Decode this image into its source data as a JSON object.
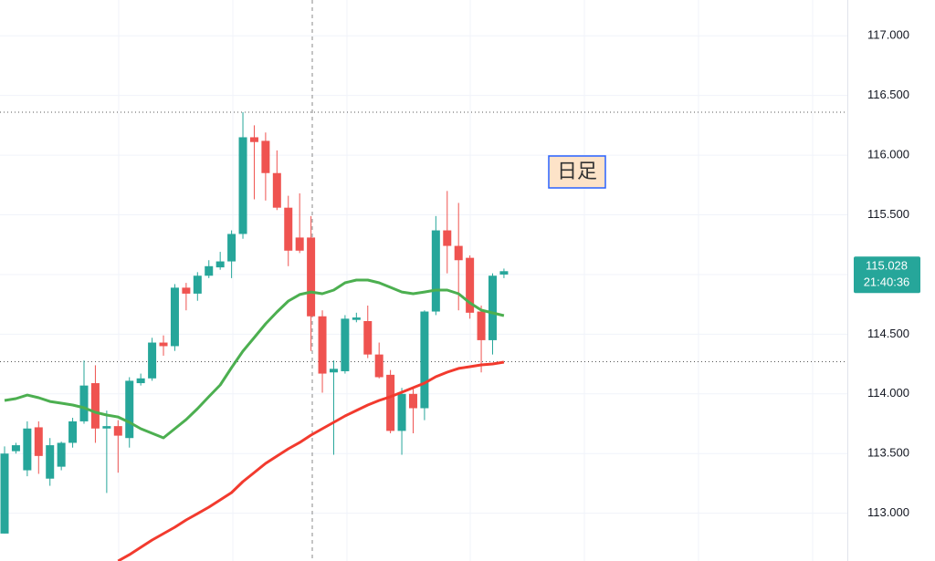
{
  "chart_data": {
    "type": "candlestick",
    "open": [
      112.83,
      113.52,
      113.36,
      113.72,
      113.29,
      113.39,
      113.59,
      113.77,
      114.09,
      113.71,
      113.73,
      113.63,
      114.09,
      114.13,
      114.43,
      114.4,
      114.89,
      114.84,
      114.99,
      115.06,
      115.11,
      115.34,
      116.15,
      116.12,
      115.85,
      115.56,
      115.31,
      115.31,
      114.65,
      114.18,
      114.19,
      114.62,
      114.61,
      114.33,
      114.16,
      113.69,
      114.0,
      113.88,
      114.69,
      115.37,
      115.24,
      115.14,
      114.69,
      114.45,
      115.0
    ],
    "high": [
      113.56,
      113.59,
      113.77,
      113.77,
      113.63,
      113.6,
      113.8,
      114.28,
      114.24,
      113.86,
      113.78,
      114.14,
      114.17,
      114.47,
      114.49,
      114.92,
      114.93,
      115.02,
      115.12,
      115.19,
      115.37,
      116.36,
      116.25,
      116.19,
      116.04,
      115.66,
      115.68,
      115.49,
      114.7,
      114.28,
      114.66,
      114.68,
      114.74,
      114.43,
      114.2,
      114.05,
      114.05,
      114.7,
      115.49,
      115.7,
      115.6,
      115.16,
      114.74,
      115.01,
      115.05
    ],
    "low": [
      112.83,
      113.5,
      113.31,
      113.33,
      113.23,
      113.36,
      113.55,
      113.75,
      113.59,
      113.17,
      113.34,
      113.55,
      114.07,
      114.11,
      114.32,
      114.36,
      114.7,
      114.78,
      114.97,
      115.04,
      114.97,
      115.3,
      115.63,
      115.62,
      115.54,
      115.07,
      115.18,
      114.36,
      114.01,
      113.49,
      114.17,
      114.6,
      114.3,
      114.13,
      113.67,
      113.49,
      113.67,
      113.78,
      114.66,
      115.01,
      114.7,
      114.63,
      114.18,
      114.33,
      114.97
    ],
    "close": [
      113.5,
      113.57,
      113.71,
      113.48,
      113.57,
      113.59,
      113.77,
      114.07,
      113.71,
      113.73,
      113.65,
      114.11,
      114.13,
      114.43,
      114.4,
      114.89,
      114.84,
      114.99,
      115.07,
      115.11,
      115.34,
      116.15,
      116.11,
      115.85,
      115.56,
      115.2,
      115.2,
      114.65,
      114.17,
      114.21,
      114.63,
      114.64,
      114.33,
      114.14,
      113.69,
      114.0,
      113.88,
      114.69,
      115.37,
      115.24,
      115.12,
      114.68,
      114.45,
      114.99,
      115.028
    ],
    "up_color": "#26a69a",
    "down_color": "#ef5350",
    "series": [
      {
        "color": "#4caf50",
        "values": [
          113.945,
          113.96,
          113.99,
          113.968,
          113.937,
          113.922,
          113.907,
          113.884,
          113.846,
          113.823,
          113.807,
          113.762,
          113.708,
          113.67,
          113.632,
          113.708,
          113.785,
          113.876,
          113.976,
          114.075,
          114.22,
          114.358,
          114.472,
          114.587,
          114.686,
          114.778,
          114.832,
          114.854,
          114.839,
          114.87,
          114.931,
          114.954,
          114.954,
          114.931,
          114.893,
          114.854,
          114.839,
          114.854,
          114.87,
          114.87,
          114.839,
          114.763,
          114.702,
          114.679,
          114.656
        ]
      },
      {
        "color": "#f23a2e",
        "values": [
          null,
          null,
          null,
          null,
          null,
          null,
          null,
          null,
          null,
          null,
          112.6,
          112.653,
          112.715,
          112.776,
          112.829,
          112.883,
          112.944,
          112.997,
          113.051,
          113.112,
          113.173,
          113.265,
          113.341,
          113.418,
          113.479,
          113.54,
          113.593,
          113.655,
          113.708,
          113.762,
          113.815,
          113.861,
          113.907,
          113.945,
          113.976,
          114.014,
          114.052,
          114.09,
          114.144,
          114.182,
          114.213,
          114.228,
          114.243,
          114.251,
          114.266
        ]
      }
    ],
    "hlines": [
      116.36,
      114.27
    ],
    "ylim": [
      112.6,
      117.3
    ],
    "yticks": [
      {
        "value": 113,
        "label": "113.000"
      },
      {
        "value": 113.5,
        "label": "113.500"
      },
      {
        "value": 114,
        "label": "114.000"
      },
      {
        "value": 114.5,
        "label": "114.500"
      },
      {
        "value": 115,
        "label": "115.000"
      },
      {
        "value": 115.5,
        "label": "115.500"
      },
      {
        "value": 116,
        "label": "116.000"
      },
      {
        "value": 116.5,
        "label": "116.500"
      },
      {
        "value": 117,
        "label": "117.000"
      }
    ],
    "grid": true,
    "last_price": 115.028,
    "countdown": "21:40:36",
    "annotation": "日足"
  }
}
